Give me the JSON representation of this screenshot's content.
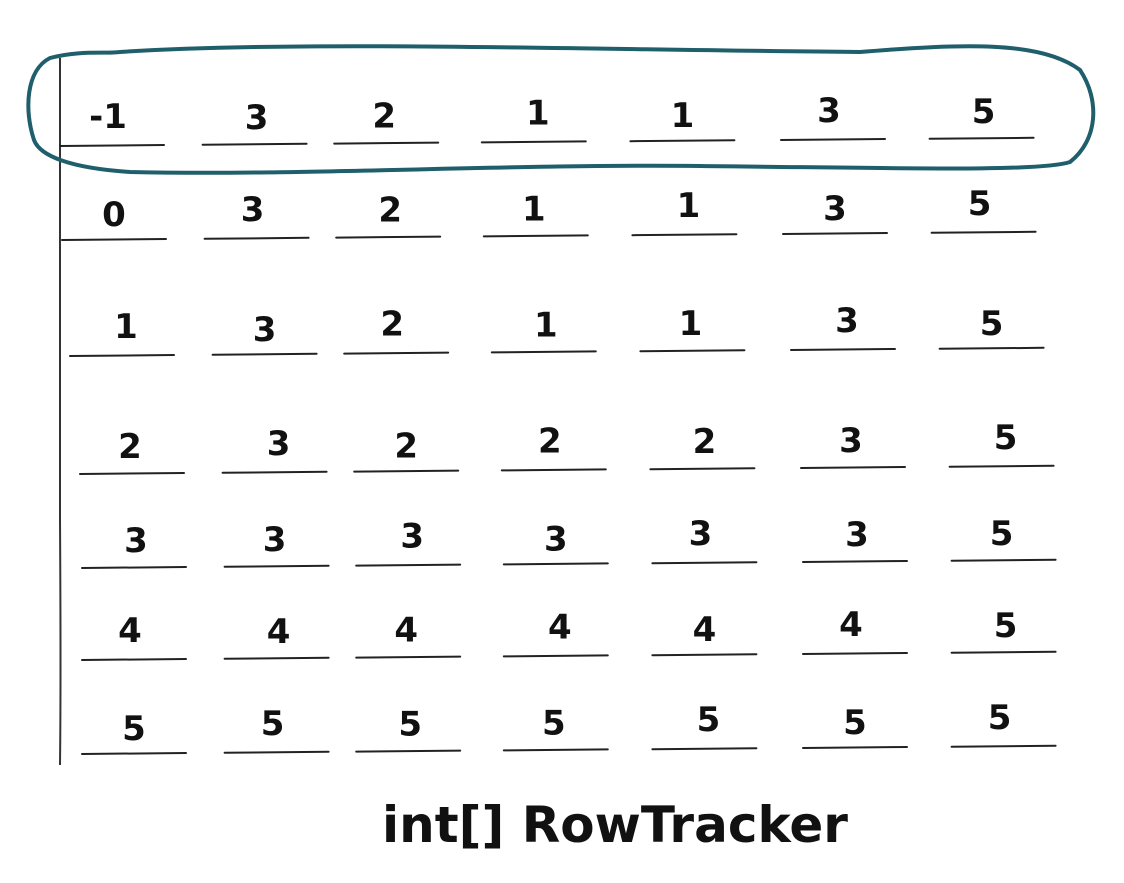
{
  "rows": [
    [
      "-1",
      "3",
      "2",
      "1",
      "1",
      "3",
      "5"
    ],
    [
      "0",
      "3",
      "2",
      "1",
      "1",
      "3",
      "5"
    ],
    [
      "1",
      "3",
      "2",
      "1",
      "1",
      "3",
      "5"
    ],
    [
      "2",
      "3",
      "2",
      "2",
      "2",
      "3",
      "5"
    ],
    [
      "3",
      "3",
      "3",
      "3",
      "3",
      "3",
      "5"
    ],
    [
      "4",
      "4",
      "4",
      "4",
      "4",
      "4",
      "5"
    ],
    [
      "5",
      "5",
      "5",
      "5",
      "5",
      "5",
      "5"
    ]
  ],
  "highlighted_row": 0,
  "caption": "int[] RowTracker",
  "colors": {
    "ink": "#111111",
    "highlight": "#1f5f6b"
  }
}
